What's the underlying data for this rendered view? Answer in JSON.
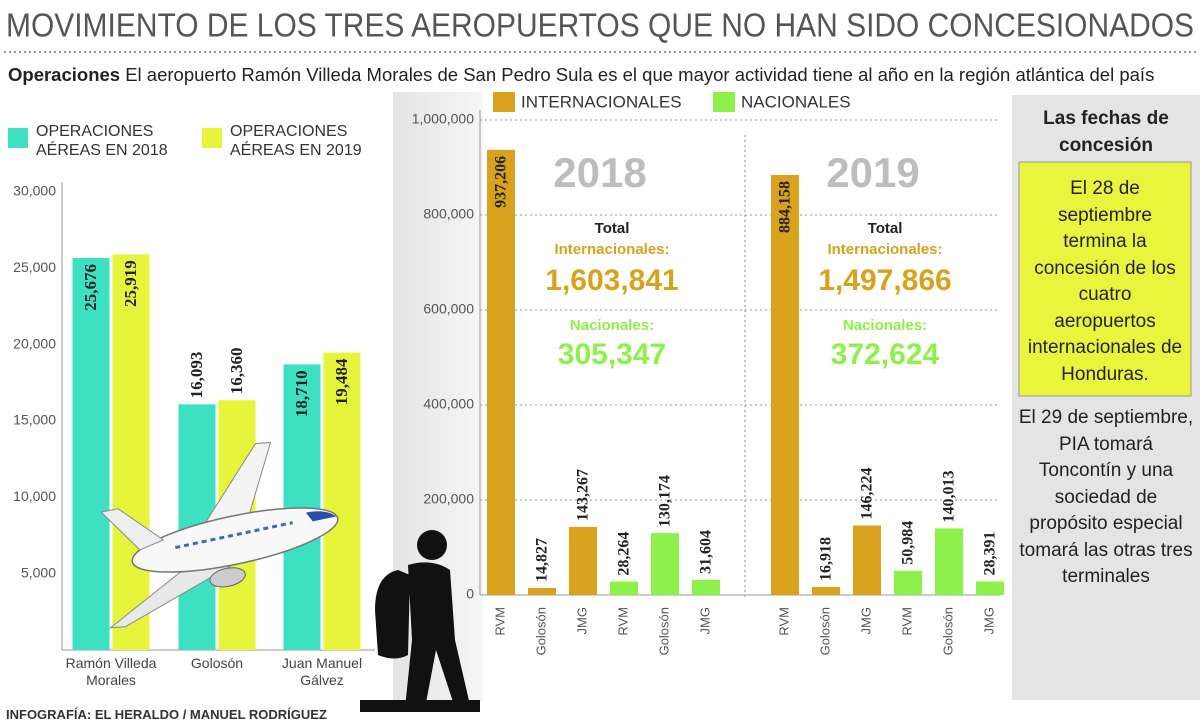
{
  "header": {
    "title": "MOVIMIENTO DE LOS TRES AEROPUERTOS QUE NO HAN SIDO CONCESIONADOS"
  },
  "subtitle": {
    "lead": "Operaciones",
    "text": "El aeropuerto Ramón Villeda Morales de San Pedro Sula es el que mayor actividad tiene al año en la región atlántica del país"
  },
  "chart_data": [
    {
      "type": "bar",
      "categories": [
        "Ramón Villeda Morales",
        "Golosón",
        "Juan Manuel Gálvez"
      ],
      "series": [
        {
          "name": "OPERACIONES AÉREAS EN 2018",
          "color": "#3ee0c2",
          "values": [
            25676,
            16093,
            18710
          ],
          "value_labels": [
            "25,676",
            "16,093",
            "18,710"
          ]
        },
        {
          "name": "OPERACIONES AÉREAS EN 2019",
          "color": "#e6f53b",
          "values": [
            25919,
            16360,
            19484
          ],
          "value_labels": [
            "25,919",
            "16,360",
            "19,484"
          ]
        }
      ],
      "ylim": [
        0,
        30000
      ],
      "yticks": [
        {
          "value": 5000,
          "label": "5,000"
        },
        {
          "value": 10000,
          "label": "10,000"
        },
        {
          "value": 15000,
          "label": "15,000"
        },
        {
          "value": 20000,
          "label": "20,000"
        },
        {
          "value": 25000,
          "label": "25,000"
        },
        {
          "value": 30000,
          "label": "30,000"
        }
      ],
      "grid": false
    },
    {
      "type": "bar",
      "categories": [
        "RVM",
        "Golosón",
        "JMG",
        "RVM",
        "Golosón",
        "JMG",
        "RVM",
        "Golosón",
        "JMG",
        "RVM",
        "Golosón",
        "JMG"
      ],
      "series": [
        {
          "name": "INTERNACIONALES",
          "color": "#d8a21c",
          "values": [
            937206,
            14827,
            143267,
            null,
            null,
            null,
            884158,
            16918,
            146224,
            null,
            null,
            null
          ],
          "value_labels": [
            "937,206",
            "14,827",
            "143,267",
            null,
            null,
            null,
            "884,158",
            "16,918",
            "146,224",
            null,
            null,
            null
          ]
        },
        {
          "name": "NACIONALES",
          "color": "#8ef04a",
          "values": [
            null,
            null,
            null,
            28264,
            130174,
            31604,
            null,
            null,
            null,
            50984,
            140013,
            28391
          ],
          "value_labels": [
            null,
            null,
            null,
            "28,264",
            "130,174",
            "31,604",
            null,
            null,
            null,
            "50,984",
            "140,013",
            "28,391"
          ]
        }
      ],
      "panels": [
        {
          "title": "2018",
          "total": "Total",
          "intl_label": "Internacionales:",
          "intl_total": "1,603,841",
          "nat_label": "Nacionales:",
          "nat_total": "305,347"
        },
        {
          "title": "2019",
          "total": "Total",
          "intl_label": "Internacionales:",
          "intl_total": "1,497,866",
          "nat_label": "Nacionales:",
          "nat_total": "372,624"
        }
      ],
      "ylim": [
        0,
        1000000
      ],
      "yticks": [
        0,
        {
          "value": 200000,
          "label": "200,000"
        },
        {
          "value": 400000,
          "label": "400,000"
        },
        {
          "value": 600000,
          "label": "600,000"
        },
        {
          "value": 800000,
          "label": "800,000"
        },
        {
          "value": 1000000,
          "label": "1,000,000"
        }
      ],
      "grid": true
    }
  ],
  "sidebar": {
    "title": "Las fechas de concesión",
    "highlight": "El 28 de septiembre termina la concesión de los cuatro aeropuertos internacionales de Honduras.",
    "text": "El 29 de septiembre, PIA tomará Toncontín y una sociedad de propósito especial tomará las otras tres terminales"
  },
  "credit": "INFOGRAFÍA: EL HERALDO / MANUEL RODRÍGUEZ"
}
